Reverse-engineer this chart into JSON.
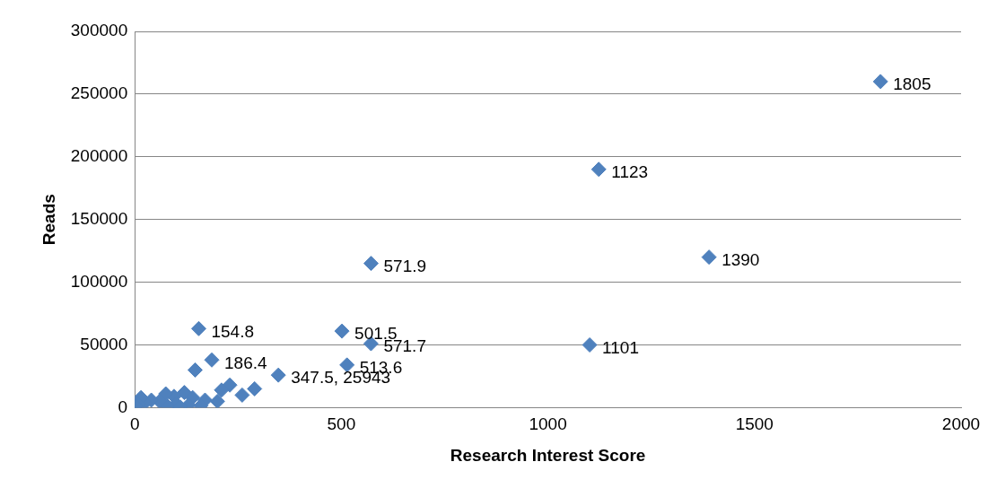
{
  "chart_data": {
    "type": "scatter",
    "xlabel": "Research Interest Score",
    "ylabel": "Reads",
    "xlim": [
      0,
      2000
    ],
    "ylim": [
      0,
      300000
    ],
    "xticks": [
      0,
      500,
      1000,
      1500,
      2000
    ],
    "yticks": [
      0,
      50000,
      100000,
      150000,
      200000,
      250000,
      300000
    ],
    "grid": "y",
    "legend": false,
    "marker": "diamond",
    "series": [
      {
        "color": "#4f81bd",
        "x": [
          1805,
          1123,
          1390,
          571.9,
          1101,
          154.8,
          501.5,
          571.7,
          513.6,
          347.5,
          186.4,
          146,
          230,
          290,
          210,
          260,
          120,
          95,
          140,
          170,
          200,
          75,
          60,
          40,
          25,
          15,
          8,
          3,
          100,
          130,
          160,
          80,
          110
        ],
        "values": [
          260000,
          190000,
          120000,
          115000,
          50000,
          63000,
          61000,
          51000,
          34000,
          25943,
          38000,
          30000,
          18000,
          15000,
          14000,
          10000,
          12000,
          9000,
          8000,
          6000,
          5000,
          11000,
          5000,
          6000,
          4000,
          8000,
          3000,
          1000,
          3000,
          2000,
          1500,
          1000,
          500
        ]
      }
    ],
    "annotations": [
      {
        "text": "1805",
        "x": 1805,
        "y": 260000
      },
      {
        "text": "1123",
        "x": 1123,
        "y": 190000
      },
      {
        "text": "1390",
        "x": 1390,
        "y": 120000
      },
      {
        "text": "571.9",
        "x": 571.9,
        "y": 115000
      },
      {
        "text": "1101",
        "x": 1101,
        "y": 50000
      },
      {
        "text": "154.8",
        "x": 154.8,
        "y": 63000
      },
      {
        "text": "501.5",
        "x": 501.5,
        "y": 61000
      },
      {
        "text": "571.7",
        "x": 571.7,
        "y": 51000
      },
      {
        "text": "513.6",
        "x": 513.6,
        "y": 34000
      },
      {
        "text": "347.5, 25943",
        "x": 347.5,
        "y": 25943
      },
      {
        "text": "186.4",
        "x": 186.4,
        "y": 38000
      }
    ]
  }
}
